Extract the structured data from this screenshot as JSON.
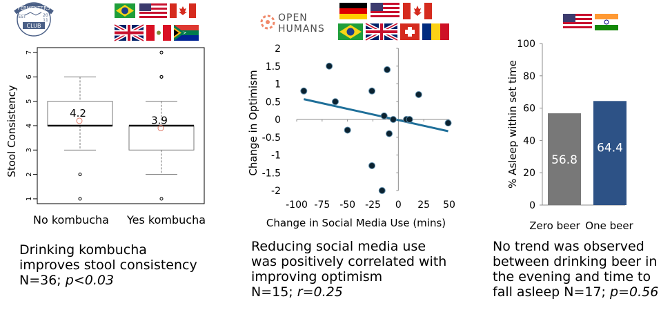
{
  "colors": {
    "regression_line": "#1f6f99",
    "dot": "#0b2230",
    "bar_zero": "#787878",
    "bar_one": "#2d5286",
    "outlier_mean": "#e07b6a"
  },
  "logos": {
    "fermenters_club": {
      "top": "FERMENTERS",
      "middle": "CLUB",
      "est": "EST",
      "year_top": "20",
      "year_bottom": "11"
    },
    "open_humans": {
      "line1": "OPEN",
      "line2": "HUMANS"
    }
  },
  "flags": {
    "panel1": [
      "brazil",
      "usa",
      "canada",
      "uk",
      "peru",
      "south-africa"
    ],
    "panel2": [
      "germany",
      "usa",
      "canada",
      "brazil",
      "uk",
      "switzerland",
      "romania"
    ],
    "panel3": [
      "usa",
      "india"
    ]
  },
  "chart_data": [
    {
      "type": "box",
      "title": "",
      "xlabel": "",
      "ylabel": "Stool Consistency",
      "ylim": [
        0.8,
        7.2
      ],
      "yticks": [
        "1",
        "2",
        "3",
        "4",
        "5",
        "6",
        "7"
      ],
      "grid": false,
      "categories": [
        "No kombucha",
        "Yes kombucha"
      ],
      "boxes": [
        {
          "name": "No kombucha",
          "whisker_low": 3,
          "q1": 4,
          "median": 4,
          "q3": 5,
          "whisker_high": 6,
          "outliers": [
            2,
            1
          ],
          "mean": 4.2,
          "mean_label": "4.2"
        },
        {
          "name": "Yes kombucha",
          "whisker_low": 2,
          "q1": 3,
          "median": 4,
          "q3": 4,
          "whisker_high": 5,
          "outliers": [
            7,
            6,
            6,
            1
          ],
          "mean": 3.9,
          "mean_label": "3.9"
        }
      ],
      "caption": {
        "line1": "Drinking kombucha",
        "line2": "improves stool consistency",
        "n": "N=36;",
        "stat": "p<0.03"
      }
    },
    {
      "type": "scatter",
      "title": "",
      "xlabel": "Change in Social Media Use (mins)",
      "ylabel": "Change in Optimism",
      "xlim": [
        -100,
        50
      ],
      "ylim": [
        -2,
        2
      ],
      "xticks": [
        "-100",
        "-75",
        "-50",
        "-25",
        "0",
        "25",
        "50"
      ],
      "yticks": [
        "2",
        "1.5",
        "1",
        "0.5",
        "0",
        "-0.5",
        "-1",
        "-1.5",
        "-2"
      ],
      "grid": false,
      "points": [
        {
          "x": -93,
          "y": 0.8
        },
        {
          "x": -68,
          "y": 1.5
        },
        {
          "x": -62,
          "y": 0.5
        },
        {
          "x": -50,
          "y": -0.3
        },
        {
          "x": -26,
          "y": 0.8
        },
        {
          "x": -26,
          "y": -1.3
        },
        {
          "x": -16,
          "y": -2.0
        },
        {
          "x": -14,
          "y": 0.1
        },
        {
          "x": -11,
          "y": 1.4
        },
        {
          "x": -9,
          "y": -0.4
        },
        {
          "x": -5,
          "y": 0.0
        },
        {
          "x": 8,
          "y": 0.0
        },
        {
          "x": 11,
          "y": 0.0
        },
        {
          "x": 20,
          "y": 0.7
        },
        {
          "x": 49,
          "y": -0.1
        }
      ],
      "trendline": [
        {
          "x": -93,
          "y": 0.57
        },
        {
          "x": 49,
          "y": -0.33
        }
      ],
      "caption": {
        "line1": "Reducing social media use",
        "line2": "was positively correlated with",
        "line3": "improving optimism",
        "n": "N=15;",
        "stat": "r=0.25"
      }
    },
    {
      "type": "bar",
      "title": "",
      "xlabel": "",
      "ylabel": "% Asleep within set time",
      "ylim": [
        0,
        100
      ],
      "yticks": [
        "0",
        "20",
        "40",
        "60",
        "80",
        "100"
      ],
      "grid": false,
      "categories": [
        "Zero beer",
        "One beer"
      ],
      "values": [
        56.8,
        64.4
      ],
      "labels": [
        "56.8",
        "64.4"
      ],
      "caption": {
        "line1": "No trend was observed",
        "line2": "between drinking beer in",
        "line3": "the evening and time to",
        "line4": "fall asleep N=17;",
        "stat": "p=0.56"
      }
    }
  ]
}
